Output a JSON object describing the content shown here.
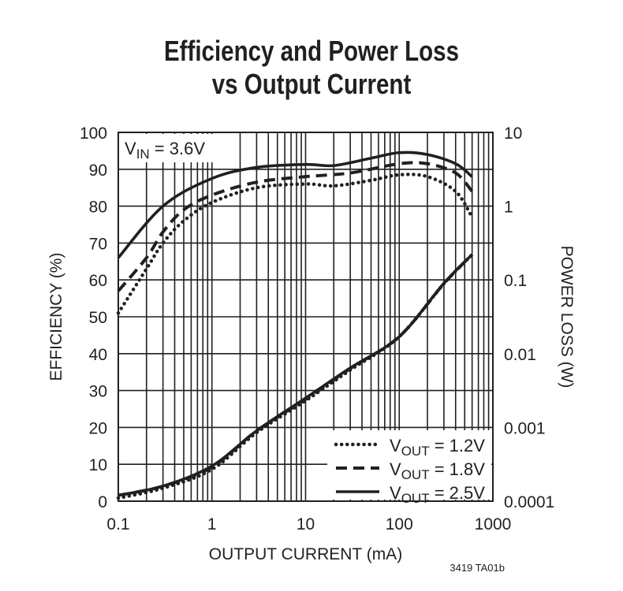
{
  "chart_data": {
    "type": "line",
    "title": [
      "Efficiency and Power Loss",
      "vs Output Current"
    ],
    "xlabel": "OUTPUT CURRENT (mA)",
    "ylabel": "EFFICIENCY (%)",
    "y2label": "POWER LOSS (W)",
    "xscale": "log",
    "xlim": [
      0.1,
      1000
    ],
    "ylim": [
      0,
      100
    ],
    "y2scale": "log",
    "y2lim": [
      0.0001,
      10
    ],
    "xticks": [
      "0.1",
      "1",
      "10",
      "100",
      "1000"
    ],
    "yticks": [
      "0",
      "10",
      "20",
      "30",
      "40",
      "50",
      "60",
      "70",
      "80",
      "90",
      "100"
    ],
    "y2ticks": [
      "0.0001",
      "0.001",
      "0.01",
      "0.1",
      "1",
      "10"
    ],
    "grid": true,
    "annotation": {
      "base": "V",
      "sub": "IN",
      "rest": " = 3.6V"
    },
    "legend_position": "bottom-right",
    "footnote": "3419 TA01b",
    "series": [
      {
        "name": "VOUT = 1.2V",
        "label": {
          "base": "V",
          "sub": "OUT",
          "rest": " = 1.2V"
        },
        "style": "dotted",
        "efficiency": {
          "x": [
            0.1,
            0.2,
            0.3,
            0.5,
            1,
            3,
            10,
            20,
            50,
            100,
            200,
            400,
            600
          ],
          "y": [
            51,
            63,
            70,
            76,
            81,
            85,
            86,
            85.5,
            87,
            88.5,
            88,
            84,
            77
          ]
        },
        "power_loss": {
          "x": [
            0.1,
            0.3,
            1,
            3,
            10,
            30,
            100,
            300,
            600
          ],
          "y": [
            0.00011,
            0.00015,
            0.00027,
            0.00085,
            0.0023,
            0.006,
            0.017,
            0.089,
            0.22
          ]
        }
      },
      {
        "name": "VOUT = 1.8V",
        "label": {
          "base": "V",
          "sub": "OUT",
          "rest": " = 1.8V"
        },
        "style": "dashed",
        "efficiency": {
          "x": [
            0.1,
            0.2,
            0.3,
            0.5,
            1,
            3,
            10,
            30,
            100,
            200,
            400,
            600
          ],
          "y": [
            57,
            66,
            73,
            79,
            83,
            86.5,
            88,
            89,
            91.5,
            91.5,
            89,
            84
          ]
        },
        "power_loss": {
          "x": [
            0.1,
            0.3,
            1,
            3,
            10,
            30,
            100,
            300,
            600
          ],
          "y": [
            0.00012,
            0.00016,
            0.00029,
            0.0009,
            0.0024,
            0.0063,
            0.017,
            0.089,
            0.22
          ]
        }
      },
      {
        "name": "VOUT = 2.5V",
        "label": {
          "base": "V",
          "sub": "OUT",
          "rest": " = 2.5V"
        },
        "style": "solid",
        "efficiency": {
          "x": [
            0.1,
            0.3,
            1,
            3,
            10,
            20,
            50,
            100,
            200,
            400,
            600
          ],
          "y": [
            66,
            80,
            87.5,
            90.5,
            91.3,
            91,
            93,
            94.5,
            94,
            91.5,
            88
          ]
        },
        "power_loss": {
          "x": [
            0.1,
            0.3,
            1,
            3,
            10,
            30,
            100,
            300,
            600
          ],
          "y": [
            0.00012,
            0.00016,
            0.0003,
            0.0009,
            0.0025,
            0.0064,
            0.017,
            0.09,
            0.22
          ]
        }
      }
    ]
  }
}
